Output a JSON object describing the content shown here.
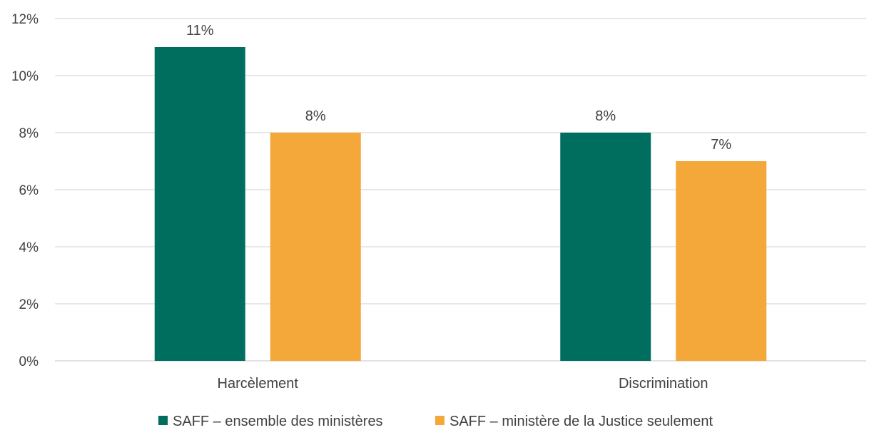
{
  "chart_data": {
    "type": "bar",
    "categories": [
      "Harcèlement",
      "Discrimination"
    ],
    "series": [
      {
        "name": "SAFF – ensemble des ministères",
        "values": [
          11,
          8
        ],
        "color": "#006E5F"
      },
      {
        "name": "SAFF – ministère de la Justice seulement",
        "values": [
          8,
          7
        ],
        "color": "#F5A83A"
      }
    ],
    "data_labels": [
      [
        "11%",
        "8%"
      ],
      [
        "8%",
        "7%"
      ]
    ],
    "ylim": [
      0,
      12
    ],
    "yticks": [
      0,
      2,
      4,
      6,
      8,
      10,
      12
    ],
    "ytick_labels": [
      "0%",
      "2%",
      "4%",
      "6%",
      "8%",
      "10%",
      "12%"
    ],
    "grid": true,
    "legend_position": "bottom",
    "gridline_color": "#D9D9D9"
  }
}
